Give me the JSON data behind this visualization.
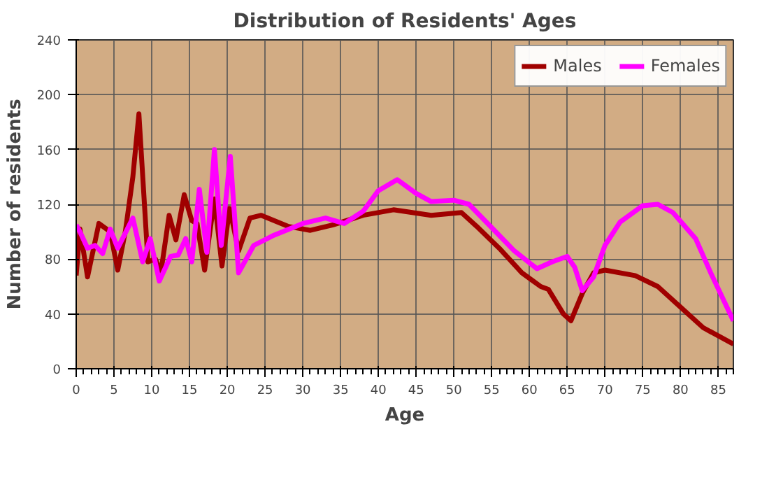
{
  "chart_data": {
    "type": "line",
    "title": "Distribution of Residents' Ages",
    "xlabel": "Age",
    "ylabel": "Number of residents",
    "xlim": [
      0,
      87
    ],
    "xticks": [
      0,
      5,
      10,
      15,
      20,
      25,
      30,
      35,
      40,
      45,
      50,
      55,
      60,
      65,
      70,
      75,
      80,
      85
    ],
    "ylim": [
      0,
      240
    ],
    "yticks": [
      0,
      40,
      80,
      120,
      160,
      200,
      240
    ],
    "grid": true,
    "legend": "top right",
    "line_style": "solid",
    "series": [
      {
        "name": "Males",
        "color": "#a00000",
        "x": [
          0,
          0.5,
          1.5,
          3,
          4.5,
          5.5,
          6.5,
          7.5,
          8.3,
          9.5,
          10.5,
          11.2,
          12.3,
          13.2,
          14.3,
          15.3,
          16,
          17,
          18.3,
          19.3,
          20.3,
          21.5,
          23,
          24.5,
          28,
          31,
          34,
          38,
          42,
          47,
          51,
          53,
          56,
          59,
          61.5,
          62.5,
          64.5,
          65.5,
          67,
          68.5,
          70,
          74,
          77,
          80,
          83,
          87
        ],
        "values": [
          68,
          102,
          67,
          106,
          100,
          72,
          100,
          140,
          186,
          78,
          80,
          70,
          112,
          94,
          127,
          108,
          106,
          72,
          124,
          75,
          117,
          86,
          110,
          112,
          104,
          101,
          105,
          112,
          116,
          112,
          114,
          104,
          88,
          70,
          60,
          58,
          40,
          35,
          55,
          70,
          72,
          68,
          60,
          45,
          30,
          18
        ]
      },
      {
        "name": "Females",
        "color": "#ff00ff",
        "x": [
          0,
          0.5,
          1.5,
          2.5,
          3.5,
          4.5,
          5.5,
          7.5,
          8.8,
          9.8,
          11,
          12.5,
          13.5,
          14.5,
          15.3,
          16.3,
          17.3,
          18.3,
          19.2,
          20.4,
          21.5,
          23.5,
          26,
          30,
          33,
          35.5,
          38,
          40,
          42.5,
          45,
          47,
          50,
          52,
          55,
          58,
          61,
          63,
          65,
          66,
          67,
          68.5,
          70,
          72,
          75,
          77,
          79,
          82,
          84,
          87
        ],
        "values": [
          105,
          100,
          88,
          90,
          84,
          102,
          88,
          110,
          78,
          95,
          64,
          82,
          83,
          95,
          78,
          131,
          85,
          160,
          90,
          155,
          70,
          90,
          97,
          106,
          110,
          106,
          115,
          130,
          138,
          128,
          122,
          123,
          120,
          103,
          86,
          73,
          78,
          82,
          74,
          57,
          67,
          90,
          107,
          119,
          120,
          114,
          95,
          70,
          35
        ]
      }
    ]
  }
}
